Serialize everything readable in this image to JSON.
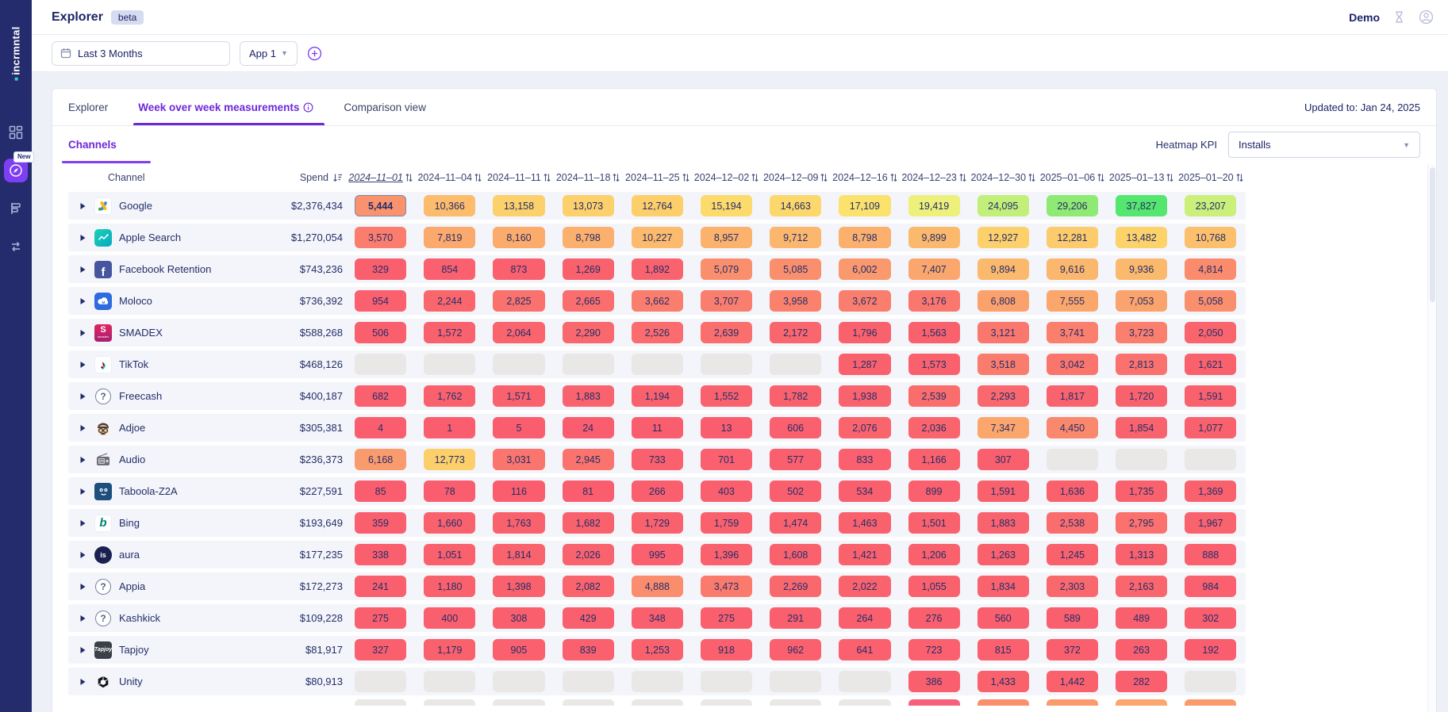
{
  "app": {
    "logo": "incrmntal",
    "page_title": "Explorer",
    "beta_badge": "beta",
    "user_label": "Demo"
  },
  "sidebar": {
    "items": [
      {
        "name": "dashboard"
      },
      {
        "name": "explorer",
        "active": true,
        "badge": "New"
      },
      {
        "name": "reports"
      },
      {
        "name": "integrations"
      }
    ]
  },
  "filters": {
    "date_range": "Last 3 Months",
    "app_selector": "App 1"
  },
  "tabs": {
    "explorer": "Explorer",
    "week_over_week": "Week over week measurements",
    "comparison": "Comparison view"
  },
  "updated_to": "Updated to: Jan 24, 2025",
  "subtab_label": "Channels",
  "heatmap": {
    "kpi_label": "Heatmap KPI",
    "kpi_value": "Installs"
  },
  "table": {
    "channel_header": "Channel",
    "spend_header": "Spend",
    "spend_sort": "desc",
    "sorted_column_index": 0,
    "date_columns": [
      "2024–11–01",
      "2024–11–04",
      "2024–11–11",
      "2024–11–18",
      "2024–11–25",
      "2024–12–02",
      "2024–12–09",
      "2024–12–16",
      "2024–12–23",
      "2024–12–30",
      "2025–01–06",
      "2025–01–13",
      "2025–01–20"
    ],
    "selected_cell": {
      "row": 0,
      "col": 0
    },
    "rows": [
      {
        "name": "Google",
        "icon": "google-ads",
        "spend": "$2,376,434",
        "values": [
          5444,
          10366,
          13158,
          13073,
          12764,
          15194,
          14663,
          17109,
          19419,
          24095,
          29206,
          37827,
          23207
        ]
      },
      {
        "name": "Apple Search",
        "icon": "apple-search-ads",
        "spend": "$1,270,054",
        "values": [
          3570,
          7819,
          8160,
          8798,
          10227,
          8957,
          9712,
          8798,
          9899,
          12927,
          12281,
          13482,
          10768
        ]
      },
      {
        "name": "Facebook Retention",
        "icon": "facebook",
        "spend": "$743,236",
        "values": [
          329,
          854,
          873,
          1269,
          1892,
          5079,
          5085,
          6002,
          7407,
          9894,
          9616,
          9936,
          4814
        ]
      },
      {
        "name": "Moloco",
        "icon": "moloco",
        "spend": "$736,392",
        "values": [
          954,
          2244,
          2825,
          2665,
          3662,
          3707,
          3958,
          3672,
          3176,
          6808,
          7555,
          7053,
          5058
        ]
      },
      {
        "name": "SMADEX",
        "icon": "smadex",
        "spend": "$588,268",
        "values": [
          506,
          1572,
          2064,
          2290,
          2526,
          2639,
          2172,
          1796,
          1563,
          3121,
          3741,
          3723,
          2050
        ]
      },
      {
        "name": "TikTok",
        "icon": "tiktok",
        "spend": "$468,126",
        "values": [
          null,
          null,
          null,
          null,
          null,
          null,
          null,
          1287,
          1573,
          3518,
          3042,
          2813,
          1621
        ]
      },
      {
        "name": "Freecash",
        "icon": "question",
        "spend": "$400,187",
        "values": [
          682,
          1762,
          1571,
          1883,
          1194,
          1552,
          1782,
          1938,
          2539,
          2293,
          1817,
          1720,
          1591
        ]
      },
      {
        "name": "Adjoe",
        "icon": "adjoe",
        "spend": "$305,381",
        "values": [
          4,
          1,
          5,
          24,
          11,
          13,
          606,
          2076,
          2036,
          7347,
          4450,
          1854,
          1077
        ]
      },
      {
        "name": "Audio",
        "icon": "audio",
        "spend": "$236,373",
        "values": [
          6168,
          12773,
          3031,
          2945,
          733,
          701,
          577,
          833,
          1166,
          307,
          null,
          null,
          null
        ]
      },
      {
        "name": "Taboola-Z2A",
        "icon": "taboola",
        "spend": "$227,591",
        "values": [
          85,
          78,
          116,
          81,
          266,
          403,
          502,
          534,
          899,
          1591,
          1636,
          1735,
          1369
        ]
      },
      {
        "name": "Bing",
        "icon": "bing",
        "spend": "$193,649",
        "values": [
          359,
          1660,
          1763,
          1682,
          1729,
          1759,
          1474,
          1463,
          1501,
          1883,
          2538,
          2795,
          1967
        ]
      },
      {
        "name": "aura",
        "icon": "aura",
        "spend": "$177,235",
        "values": [
          338,
          1051,
          1814,
          2026,
          995,
          1396,
          1608,
          1421,
          1206,
          1263,
          1245,
          1313,
          888
        ]
      },
      {
        "name": "Appia",
        "icon": "question",
        "spend": "$172,273",
        "values": [
          241,
          1180,
          1398,
          2082,
          4888,
          3473,
          2269,
          2022,
          1055,
          1834,
          2303,
          2163,
          984
        ]
      },
      {
        "name": "Kashkick",
        "icon": "question",
        "spend": "$109,228",
        "values": [
          275,
          400,
          308,
          429,
          348,
          275,
          291,
          264,
          276,
          560,
          589,
          489,
          302
        ]
      },
      {
        "name": "Tapjoy",
        "icon": "tapjoy",
        "spend": "$81,917",
        "values": [
          327,
          1179,
          905,
          839,
          1253,
          918,
          962,
          641,
          723,
          815,
          372,
          263,
          192
        ]
      },
      {
        "name": "Unity",
        "icon": "unity",
        "spend": "$80,913",
        "values": [
          null,
          null,
          null,
          null,
          null,
          null,
          null,
          null,
          386,
          1433,
          1442,
          282,
          null
        ]
      }
    ],
    "partial_row_colors": [
      "#e9e8e6",
      "#e9e8e6",
      "#e9e8e6",
      "#e9e8e6",
      "#e9e8e6",
      "#e9e8e6",
      "#e9e8e6",
      "#e9e8e6",
      "#f7607d",
      "#fb8f6d",
      "#fb9a6d",
      "#fba66c",
      "#fb9a6d"
    ]
  },
  "colors": {
    "sidebar_bg": "#252c6d",
    "accent_purple": "#7e3ff2",
    "navy_text": "#1c2466",
    "empty_cell": "#e9e8e6",
    "heatmap_stops": [
      [
        0,
        "#fa5e6e"
      ],
      [
        2000,
        "#f9636d"
      ],
      [
        3000,
        "#fa756d"
      ],
      [
        4200,
        "#fa856d"
      ],
      [
        5500,
        "#fa946d"
      ],
      [
        7000,
        "#fba36c"
      ],
      [
        9000,
        "#fbb26d"
      ],
      [
        11000,
        "#fcc16c"
      ],
      [
        12800,
        "#fccf6b"
      ],
      [
        15000,
        "#fcd96b"
      ],
      [
        17200,
        "#fbe26c"
      ],
      [
        19500,
        "#edf17b"
      ],
      [
        24000,
        "#c3ef7a"
      ],
      [
        29200,
        "#8fea73"
      ],
      [
        37900,
        "#55e66f"
      ]
    ]
  }
}
